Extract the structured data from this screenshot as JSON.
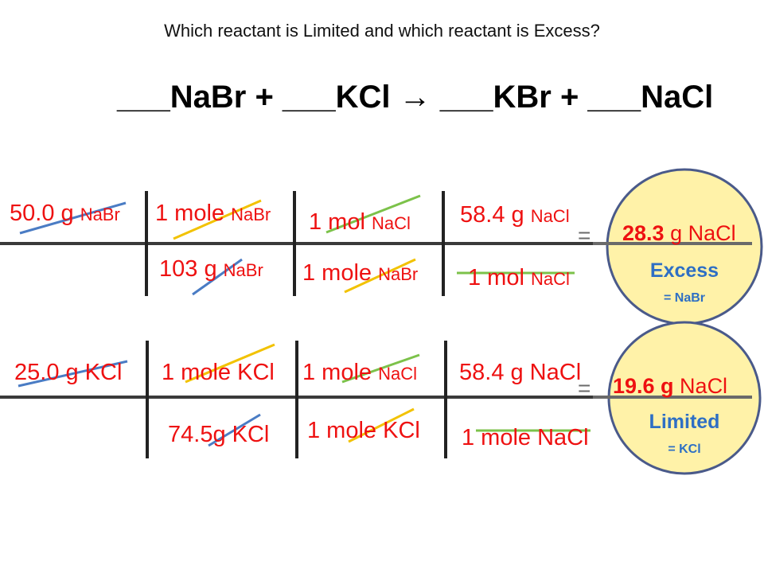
{
  "question": "Which reactant is Limited and which reactant is Excess?",
  "equation": "___NaBr  +  ___KCl  →  ___KBr  +  ___NaCl",
  "row1": {
    "c1_num": "50.0 g ",
    "c1_sub": "NaBr",
    "c2_num": "1 mole ",
    "c2_sub": "NaBr",
    "c2_den": "103 g ",
    "c2_den_sub": "NaBr",
    "c3_num": "1 mol ",
    "c3_num_sub": "NaCl",
    "c3_den": "1 mole ",
    "c3_den_sub": "NaBr",
    "c4_num": "58.4 g ",
    "c4_num_sub": "NaCl",
    "c4_den": "1 mol ",
    "c4_den_sub": "NaCl",
    "equals": "=",
    "result_value": "28.3",
    "result_unit": " g NaCl",
    "status": "Excess",
    "status_reactant": "= NaBr"
  },
  "row2": {
    "c1_num": "25.0 g KCl",
    "c2_num": "1 mole KCl",
    "c2_den": "74.5g KCl",
    "c3_num": "1 mole ",
    "c3_num_sub": "NaCl",
    "c3_den": "1 mole KCl",
    "c4_num": "58.4 g NaCl",
    "c4_den": "1 mole NaCl",
    "equals": "=",
    "result_value": "19.6 g",
    "result_unit": " NaCl",
    "status": "Limited",
    "status_reactant": "= KCl"
  },
  "colors": {
    "text_red": "#ee1111",
    "circle_fill": "#fff2a8",
    "circle_stroke": "#4a5a8a",
    "status_blue": "#2e6fc4",
    "cancel_blue": "#4a7cc4",
    "cancel_yellow": "#f2c200",
    "cancel_green": "#7cc24a"
  }
}
